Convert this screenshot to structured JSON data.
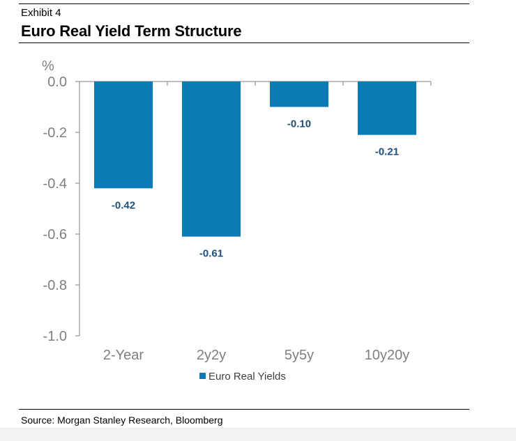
{
  "header": {
    "exhibit": "Exhibit 4",
    "title": "Euro Real Yield Term Structure"
  },
  "footer": {
    "source": "Source: Morgan Stanley Research, Bloomberg"
  },
  "colors": {
    "bar": "#0a7bb5",
    "data_label": "#1f4e79",
    "axis": "#7f7f7f"
  },
  "chart_data": {
    "type": "bar",
    "title": "Euro Real Yield Term Structure",
    "ylabel": "%",
    "xlabel": "",
    "categories": [
      "2-Year",
      "2y2y",
      "5y5y",
      "10y20y"
    ],
    "series": [
      {
        "name": "Euro Real Yields",
        "values": [
          -0.42,
          -0.61,
          -0.1,
          -0.21
        ]
      }
    ],
    "data_labels": [
      "-0.42",
      "-0.61",
      "-0.10",
      "-0.21"
    ],
    "ylim": [
      -1.0,
      0.0
    ],
    "yticks": [
      "0.0",
      "-0.2",
      "-0.4",
      "-0.6",
      "-0.8",
      "-1.0"
    ],
    "ytick_values": [
      0.0,
      -0.2,
      -0.4,
      -0.6,
      -0.8,
      -1.0
    ],
    "grid": false,
    "legend_position": "bottom-center"
  }
}
